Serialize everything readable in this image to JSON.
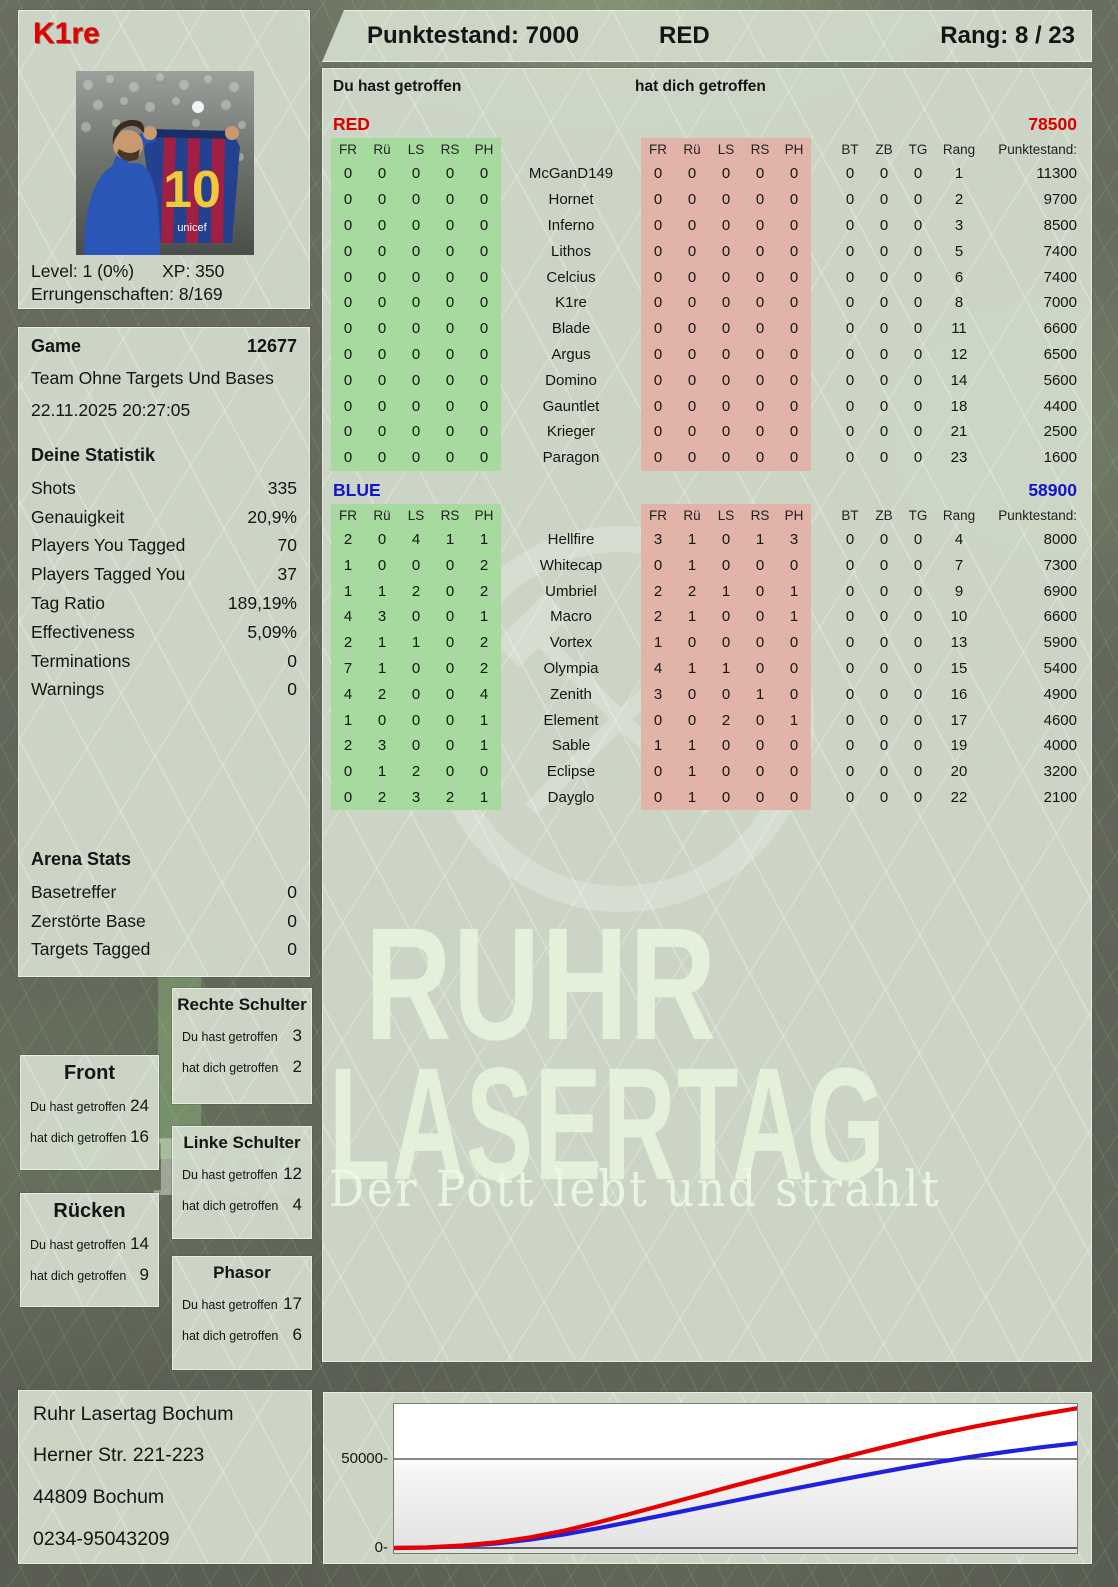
{
  "player": {
    "name": "K1re",
    "level_label": "Level: 1 (0%)",
    "xp_label": "XP: 350",
    "achievements_label": "Errungenschaften: 8/169"
  },
  "topbar": {
    "score_label": "Punktestand: 7000",
    "team": "RED",
    "rank_label": "Rang: 8 / 23"
  },
  "main": {
    "left_header": "Du hast getroffen",
    "right_header": "hat dich getroffen",
    "columns": [
      "FR",
      "Rü",
      "LS",
      "RS",
      "PH",
      "",
      "FR",
      "Rü",
      "LS",
      "RS",
      "PH",
      "BT",
      "ZB",
      "TG",
      "Rang",
      "Punktestand:"
    ],
    "teams": [
      {
        "name": "RED",
        "color": "#d80000",
        "total": "78500",
        "rows": [
          [
            "0",
            "0",
            "0",
            "0",
            "0",
            "McGanD149",
            "0",
            "0",
            "0",
            "0",
            "0",
            "0",
            "0",
            "0",
            "1",
            "11300"
          ],
          [
            "0",
            "0",
            "0",
            "0",
            "0",
            "Hornet",
            "0",
            "0",
            "0",
            "0",
            "0",
            "0",
            "0",
            "0",
            "2",
            "9700"
          ],
          [
            "0",
            "0",
            "0",
            "0",
            "0",
            "Inferno",
            "0",
            "0",
            "0",
            "0",
            "0",
            "0",
            "0",
            "0",
            "3",
            "8500"
          ],
          [
            "0",
            "0",
            "0",
            "0",
            "0",
            "Lithos",
            "0",
            "0",
            "0",
            "0",
            "0",
            "0",
            "0",
            "0",
            "5",
            "7400"
          ],
          [
            "0",
            "0",
            "0",
            "0",
            "0",
            "Celcius",
            "0",
            "0",
            "0",
            "0",
            "0",
            "0",
            "0",
            "0",
            "6",
            "7400"
          ],
          [
            "0",
            "0",
            "0",
            "0",
            "0",
            "K1re",
            "0",
            "0",
            "0",
            "0",
            "0",
            "0",
            "0",
            "0",
            "8",
            "7000"
          ],
          [
            "0",
            "0",
            "0",
            "0",
            "0",
            "Blade",
            "0",
            "0",
            "0",
            "0",
            "0",
            "0",
            "0",
            "0",
            "11",
            "6600"
          ],
          [
            "0",
            "0",
            "0",
            "0",
            "0",
            "Argus",
            "0",
            "0",
            "0",
            "0",
            "0",
            "0",
            "0",
            "0",
            "12",
            "6500"
          ],
          [
            "0",
            "0",
            "0",
            "0",
            "0",
            "Domino",
            "0",
            "0",
            "0",
            "0",
            "0",
            "0",
            "0",
            "0",
            "14",
            "5600"
          ],
          [
            "0",
            "0",
            "0",
            "0",
            "0",
            "Gauntlet",
            "0",
            "0",
            "0",
            "0",
            "0",
            "0",
            "0",
            "0",
            "18",
            "4400"
          ],
          [
            "0",
            "0",
            "0",
            "0",
            "0",
            "Krieger",
            "0",
            "0",
            "0",
            "0",
            "0",
            "0",
            "0",
            "0",
            "21",
            "2500"
          ],
          [
            "0",
            "0",
            "0",
            "0",
            "0",
            "Paragon",
            "0",
            "0",
            "0",
            "0",
            "0",
            "0",
            "0",
            "0",
            "23",
            "1600"
          ]
        ]
      },
      {
        "name": "BLUE",
        "color": "#1414cf",
        "total": "58900",
        "rows": [
          [
            "2",
            "0",
            "4",
            "1",
            "1",
            "Hellfire",
            "3",
            "1",
            "0",
            "1",
            "3",
            "0",
            "0",
            "0",
            "4",
            "8000"
          ],
          [
            "1",
            "0",
            "0",
            "0",
            "2",
            "Whitecap",
            "0",
            "1",
            "0",
            "0",
            "0",
            "0",
            "0",
            "0",
            "7",
            "7300"
          ],
          [
            "1",
            "1",
            "2",
            "0",
            "2",
            "Umbriel",
            "2",
            "2",
            "1",
            "0",
            "1",
            "0",
            "0",
            "0",
            "9",
            "6900"
          ],
          [
            "4",
            "3",
            "0",
            "0",
            "1",
            "Macro",
            "2",
            "1",
            "0",
            "0",
            "1",
            "0",
            "0",
            "0",
            "10",
            "6600"
          ],
          [
            "2",
            "1",
            "1",
            "0",
            "2",
            "Vortex",
            "1",
            "0",
            "0",
            "0",
            "0",
            "0",
            "0",
            "0",
            "13",
            "5900"
          ],
          [
            "7",
            "1",
            "0",
            "0",
            "2",
            "Olympia",
            "4",
            "1",
            "1",
            "0",
            "0",
            "0",
            "0",
            "0",
            "15",
            "5400"
          ],
          [
            "4",
            "2",
            "0",
            "0",
            "4",
            "Zenith",
            "3",
            "0",
            "0",
            "1",
            "0",
            "0",
            "0",
            "0",
            "16",
            "4900"
          ],
          [
            "1",
            "0",
            "0",
            "0",
            "1",
            "Element",
            "0",
            "0",
            "2",
            "0",
            "1",
            "0",
            "0",
            "0",
            "17",
            "4600"
          ],
          [
            "2",
            "3",
            "0",
            "0",
            "1",
            "Sable",
            "1",
            "1",
            "0",
            "0",
            "0",
            "0",
            "0",
            "0",
            "19",
            "4000"
          ],
          [
            "0",
            "1",
            "2",
            "0",
            "0",
            "Eclipse",
            "0",
            "1",
            "0",
            "0",
            "0",
            "0",
            "0",
            "0",
            "20",
            "3200"
          ],
          [
            "0",
            "2",
            "3",
            "2",
            "1",
            "Dayglo",
            "0",
            "1",
            "0",
            "0",
            "0",
            "0",
            "0",
            "0",
            "22",
            "2100"
          ]
        ]
      }
    ]
  },
  "game": {
    "title": "Game",
    "id": "12677",
    "mode": "Team Ohne Targets Und Bases",
    "date": "22.11.2025 20:27:05"
  },
  "stats": {
    "title": "Deine Statistik",
    "rows": [
      [
        "Shots",
        "335"
      ],
      [
        "Genauigkeit",
        "20,9%"
      ],
      [
        "Players You Tagged",
        "70"
      ],
      [
        "Players Tagged You",
        "37"
      ],
      [
        "Tag Ratio",
        "189,19%"
      ],
      [
        "Effectiveness",
        "5,09%"
      ],
      [
        "Terminations",
        "0"
      ],
      [
        "Warnings",
        "0"
      ]
    ]
  },
  "arena": {
    "title": "Arena Stats",
    "rows": [
      [
        "Basetreffer",
        "0"
      ],
      [
        "Zerstörte Base",
        "0"
      ],
      [
        "Targets Tagged",
        "0"
      ]
    ]
  },
  "bodyparts": {
    "you_label": "Du hast getroffen",
    "them_label": "hat dich getroffen",
    "panels": [
      {
        "title": "Front",
        "you": "24",
        "them": "16"
      },
      {
        "title": "Rücken",
        "you": "14",
        "them": "9"
      },
      {
        "title": "Rechte Schulter",
        "you": "3",
        "them": "2"
      },
      {
        "title": "Linke Schulter",
        "you": "12",
        "them": "4"
      },
      {
        "title": "Phasor",
        "you": "17",
        "them": "6"
      }
    ]
  },
  "address": {
    "lines": [
      "Ruhr Lasertag Bochum",
      "Herner Str. 221-223",
      "44809 Bochum",
      "0234-95043209"
    ]
  },
  "watermark": {
    "line1": "RUHR",
    "line2": "LASERTAG",
    "tagline": "Der Pott lebt und strahlt"
  },
  "chart_data": {
    "type": "line",
    "title": "",
    "x_percent": [
      0,
      5,
      10,
      15,
      20,
      25,
      30,
      35,
      40,
      45,
      50,
      55,
      60,
      65,
      70,
      75,
      80,
      85,
      90,
      95,
      100
    ],
    "series": [
      {
        "name": "RED",
        "color": "#e60000",
        "values": [
          0,
          400,
          1400,
          3200,
          6000,
          9800,
          14500,
          19600,
          24800,
          30000,
          35200,
          40300,
          45300,
          50200,
          55000,
          59700,
          64200,
          68200,
          71800,
          75200,
          78500
        ]
      },
      {
        "name": "BLUE",
        "color": "#2020dd",
        "values": [
          0,
          300,
          1100,
          2600,
          4800,
          7700,
          11200,
          15000,
          18900,
          22800,
          26700,
          30600,
          34400,
          38100,
          41700,
          45200,
          48500,
          51500,
          54200,
          56700,
          58900
        ]
      }
    ],
    "yticks": [
      0,
      50000
    ],
    "ytick_labels": [
      "0-",
      "50000-"
    ],
    "ylim": [
      0,
      80900
    ],
    "grid": "horizontal gridline at 50000 and baseline at 0",
    "legend": false
  }
}
